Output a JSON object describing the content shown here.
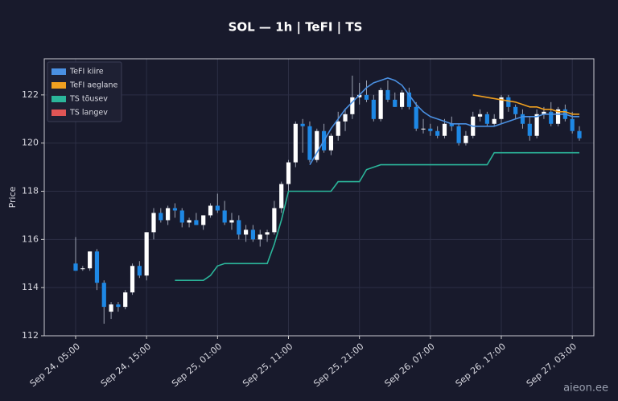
{
  "chart_data": {
    "type": "candlestick",
    "title": "SOL — 1h  |  TeFI  |  TS",
    "ylabel": "Price",
    "watermark": "aieon.ee",
    "up_color": "#ffffff",
    "down_color": "#1e88e5",
    "grid": true,
    "legend": "upper left",
    "ylim": [
      112,
      123.5
    ],
    "yticks": [
      112,
      114,
      116,
      118,
      120,
      122
    ],
    "categories": [
      "Sep 24, 05:00",
      "Sep 24, 06:00",
      "Sep 24, 07:00",
      "Sep 24, 08:00",
      "Sep 24, 09:00",
      "Sep 24, 10:00",
      "Sep 24, 11:00",
      "Sep 24, 12:00",
      "Sep 24, 13:00",
      "Sep 24, 14:00",
      "Sep 24, 15:00",
      "Sep 24, 16:00",
      "Sep 24, 17:00",
      "Sep 24, 18:00",
      "Sep 24, 19:00",
      "Sep 24, 20:00",
      "Sep 24, 21:00",
      "Sep 24, 22:00",
      "Sep 24, 23:00",
      "Sep 25, 00:00",
      "Sep 25, 01:00",
      "Sep 25, 02:00",
      "Sep 25, 03:00",
      "Sep 25, 04:00",
      "Sep 25, 05:00",
      "Sep 25, 06:00",
      "Sep 25, 07:00",
      "Sep 25, 08:00",
      "Sep 25, 09:00",
      "Sep 25, 10:00",
      "Sep 25, 11:00",
      "Sep 25, 12:00",
      "Sep 25, 13:00",
      "Sep 25, 14:00",
      "Sep 25, 15:00",
      "Sep 25, 16:00",
      "Sep 25, 17:00",
      "Sep 25, 18:00",
      "Sep 25, 19:00",
      "Sep 25, 20:00",
      "Sep 25, 21:00",
      "Sep 25, 22:00",
      "Sep 25, 23:00",
      "Sep 26, 00:00",
      "Sep 26, 01:00",
      "Sep 26, 02:00",
      "Sep 26, 03:00",
      "Sep 26, 04:00",
      "Sep 26, 05:00",
      "Sep 26, 06:00",
      "Sep 26, 07:00",
      "Sep 26, 08:00",
      "Sep 26, 09:00",
      "Sep 26, 10:00",
      "Sep 26, 11:00",
      "Sep 26, 12:00",
      "Sep 26, 13:00",
      "Sep 26, 14:00",
      "Sep 26, 15:00",
      "Sep 26, 16:00",
      "Sep 26, 17:00",
      "Sep 26, 18:00",
      "Sep 26, 19:00",
      "Sep 26, 20:00",
      "Sep 26, 21:00",
      "Sep 26, 22:00",
      "Sep 26, 23:00",
      "Sep 27, 00:00",
      "Sep 27, 01:00",
      "Sep 27, 02:00",
      "Sep 27, 03:00",
      "Sep 27, 04:00"
    ],
    "xticks": [
      "Sep 24, 05:00",
      "Sep 24, 15:00",
      "Sep 25, 01:00",
      "Sep 25, 11:00",
      "Sep 25, 21:00",
      "Sep 26, 07:00",
      "Sep 26, 17:00",
      "Sep 27, 03:00"
    ],
    "open": [
      115.0,
      114.8,
      114.8,
      115.5,
      114.2,
      113.0,
      113.3,
      113.2,
      113.8,
      114.9,
      114.5,
      116.3,
      117.1,
      116.8,
      117.3,
      117.2,
      116.7,
      116.8,
      116.6,
      117.0,
      117.4,
      117.2,
      116.7,
      116.8,
      116.2,
      116.4,
      116.0,
      116.2,
      116.3,
      117.3,
      118.3,
      119.2,
      120.8,
      120.7,
      119.3,
      120.5,
      119.7,
      120.3,
      120.9,
      121.2,
      121.9,
      122.0,
      121.8,
      121.0,
      122.2,
      121.8,
      121.5,
      122.1,
      121.5,
      120.6,
      120.6,
      120.5,
      120.3,
      120.8,
      120.7,
      120.0,
      120.3,
      121.1,
      121.2,
      120.8,
      121.0,
      121.9,
      121.5,
      121.2,
      120.8,
      120.3,
      121.2,
      121.3,
      120.8,
      121.4,
      121.0,
      120.5
    ],
    "high": [
      116.1,
      114.9,
      115.5,
      115.6,
      114.3,
      113.4,
      113.4,
      113.9,
      115.0,
      115.1,
      116.3,
      117.3,
      117.3,
      117.4,
      117.5,
      117.3,
      116.9,
      117.1,
      117.0,
      117.5,
      117.9,
      117.6,
      117.1,
      117.0,
      116.6,
      116.6,
      116.4,
      116.4,
      117.6,
      118.4,
      119.3,
      120.9,
      121.0,
      120.9,
      120.6,
      120.8,
      120.4,
      121.3,
      121.4,
      122.8,
      122.5,
      122.6,
      122.0,
      122.3,
      122.6,
      122.1,
      122.2,
      122.3,
      121.7,
      121.0,
      120.8,
      120.7,
      121.0,
      121.1,
      120.8,
      120.5,
      121.3,
      121.4,
      121.3,
      121.2,
      122.0,
      122.0,
      121.6,
      121.4,
      121.1,
      121.4,
      121.5,
      121.7,
      121.5,
      121.6,
      121.3,
      120.7
    ],
    "low": [
      114.7,
      114.7,
      114.7,
      113.9,
      112.5,
      112.7,
      113.0,
      113.1,
      113.7,
      114.4,
      114.3,
      116.0,
      116.7,
      116.6,
      116.9,
      116.5,
      116.5,
      116.6,
      116.4,
      116.9,
      117.1,
      116.6,
      116.4,
      116.0,
      115.9,
      115.9,
      115.7,
      115.9,
      116.2,
      117.1,
      118.0,
      119.0,
      119.6,
      119.2,
      119.2,
      119.6,
      119.5,
      120.1,
      120.5,
      121.0,
      121.6,
      121.7,
      120.9,
      120.9,
      121.7,
      121.5,
      121.4,
      121.4,
      120.5,
      120.4,
      120.3,
      120.2,
      120.2,
      120.5,
      119.9,
      119.9,
      120.2,
      120.9,
      120.7,
      120.7,
      120.8,
      121.3,
      121.0,
      120.6,
      120.1,
      120.2,
      121.0,
      120.7,
      120.7,
      120.9,
      120.4,
      120.1
    ],
    "close": [
      114.7,
      114.8,
      115.5,
      114.2,
      113.2,
      113.3,
      113.2,
      113.8,
      114.9,
      114.5,
      116.3,
      117.1,
      116.8,
      117.3,
      117.2,
      116.7,
      116.8,
      116.6,
      117.0,
      117.4,
      117.2,
      116.7,
      116.8,
      116.2,
      116.4,
      116.0,
      116.2,
      116.3,
      117.3,
      118.3,
      119.2,
      120.8,
      120.7,
      119.3,
      120.5,
      119.7,
      120.3,
      120.9,
      121.2,
      121.9,
      122.0,
      121.8,
      121.0,
      122.2,
      121.8,
      121.5,
      122.1,
      121.5,
      120.6,
      120.6,
      120.5,
      120.3,
      120.8,
      120.7,
      120.0,
      120.3,
      121.1,
      121.2,
      120.8,
      121.0,
      121.9,
      121.5,
      121.2,
      120.8,
      120.3,
      121.2,
      121.3,
      120.8,
      121.4,
      121.0,
      120.5,
      120.2
    ],
    "series": [
      {
        "name": "TeFI kiire",
        "color": "#4a90e2",
        "values": [
          null,
          null,
          null,
          null,
          null,
          null,
          null,
          null,
          null,
          null,
          null,
          null,
          null,
          null,
          null,
          null,
          null,
          null,
          null,
          null,
          null,
          null,
          null,
          null,
          null,
          null,
          null,
          null,
          null,
          null,
          null,
          null,
          null,
          119.1,
          119.6,
          120.1,
          120.6,
          121.0,
          121.4,
          121.7,
          122.0,
          122.3,
          122.5,
          122.6,
          122.7,
          122.6,
          122.4,
          122.0,
          121.6,
          121.3,
          121.1,
          121.0,
          120.9,
          120.8,
          120.8,
          120.8,
          120.7,
          120.7,
          120.7,
          120.7,
          120.8,
          120.9,
          121.0,
          121.1,
          121.1,
          121.1,
          121.2,
          121.2,
          121.2,
          121.2,
          121.1,
          121.1
        ]
      },
      {
        "name": "TeFI aeglane",
        "color": "#f0a020",
        "values": [
          null,
          null,
          null,
          null,
          null,
          null,
          null,
          null,
          null,
          null,
          null,
          null,
          null,
          null,
          null,
          null,
          null,
          null,
          null,
          null,
          null,
          null,
          null,
          null,
          null,
          null,
          null,
          null,
          null,
          null,
          null,
          null,
          null,
          null,
          null,
          null,
          null,
          null,
          null,
          null,
          null,
          null,
          null,
          null,
          null,
          null,
          null,
          null,
          null,
          null,
          null,
          null,
          null,
          null,
          null,
          null,
          122.0,
          121.95,
          121.9,
          121.85,
          121.8,
          121.75,
          121.7,
          121.6,
          121.5,
          121.5,
          121.4,
          121.4,
          121.3,
          121.3,
          121.2,
          121.2
        ]
      },
      {
        "name": "TS tõusev",
        "color": "#2bb59a",
        "values": [
          null,
          null,
          null,
          null,
          null,
          null,
          null,
          null,
          null,
          null,
          null,
          null,
          null,
          null,
          114.3,
          114.3,
          114.3,
          114.3,
          114.3,
          114.5,
          114.9,
          115.0,
          115.0,
          115.0,
          115.0,
          115.0,
          115.0,
          115.0,
          115.8,
          116.8,
          118.0,
          118.0,
          118.0,
          118.0,
          118.0,
          118.0,
          118.0,
          118.4,
          118.4,
          118.4,
          118.4,
          118.9,
          119.0,
          119.1,
          119.1,
          119.1,
          119.1,
          119.1,
          119.1,
          119.1,
          119.1,
          119.1,
          119.1,
          119.1,
          119.1,
          119.1,
          119.1,
          119.1,
          119.1,
          119.6,
          119.6,
          119.6,
          119.6,
          119.6,
          119.6,
          119.6,
          119.6,
          119.6,
          119.6,
          119.6,
          119.6,
          119.6
        ]
      },
      {
        "name": "TS langev",
        "color": "#e05555",
        "values": [
          null,
          null,
          null,
          null,
          null,
          null,
          null,
          null,
          null,
          null,
          null,
          null,
          null,
          null,
          null,
          null,
          null,
          null,
          null,
          null,
          null,
          null,
          null,
          null,
          null,
          null,
          null,
          null,
          null,
          null,
          null,
          null,
          null,
          null,
          null,
          null,
          null,
          null,
          null,
          null,
          null,
          null,
          null,
          null,
          null,
          null,
          null,
          null,
          null,
          null,
          null,
          null,
          null,
          null,
          null,
          null,
          null,
          null,
          null,
          null,
          null,
          null,
          null,
          null,
          null,
          null,
          null,
          null,
          null,
          null,
          null,
          null
        ]
      }
    ]
  }
}
